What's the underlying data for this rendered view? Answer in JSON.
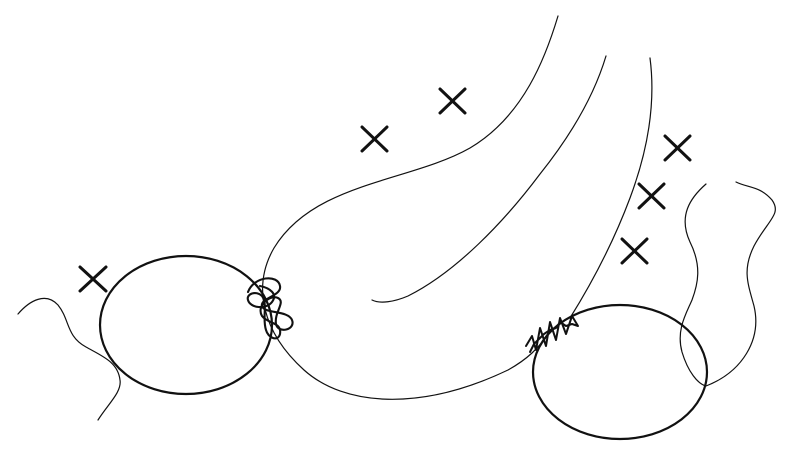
{
  "diagram": {
    "background_color": "#ffffff",
    "ink_color": "#111111",
    "components": {
      "left_circle": "circle",
      "right_circle": "circle",
      "upper_connections": "curves",
      "edge_textures": "scribbles",
      "markers": "x-marks"
    }
  }
}
